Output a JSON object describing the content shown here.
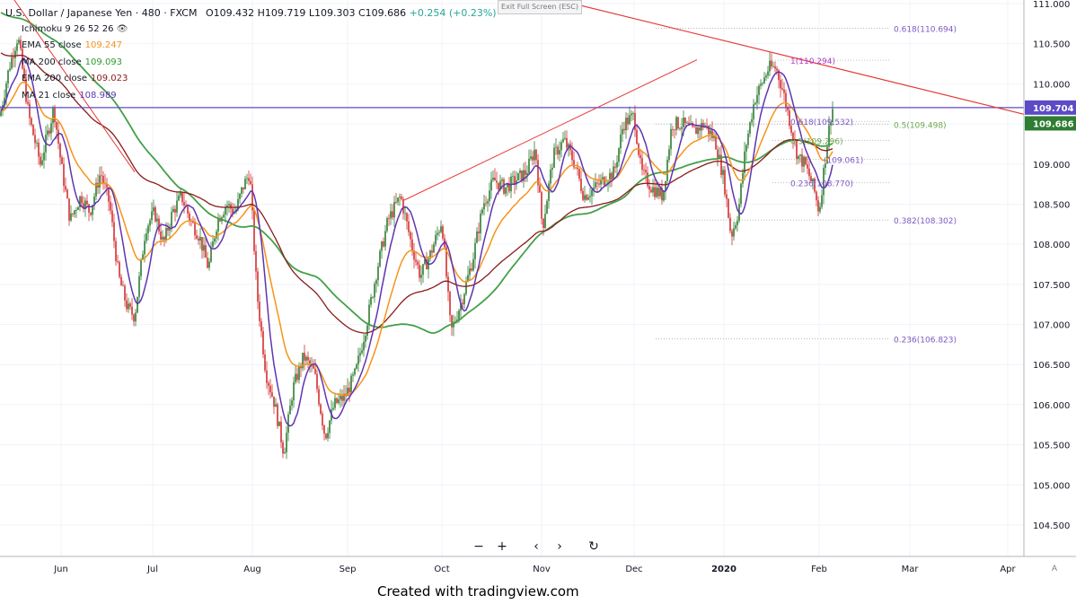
{
  "header": {
    "symbol": "U.S. Dollar / Japanese Yen · 480 · FXCM",
    "ohlc": "O109.432 H109.719 L109.303 C109.686",
    "change": "+0.254 (+0.23%)"
  },
  "legend": [
    {
      "label": "Ichimoku 9 26 52 26",
      "value": "",
      "color": "#131722"
    },
    {
      "label": "EMA 55 close",
      "value": "109.247",
      "color": "#f7931a"
    },
    {
      "label": "MA 200 close",
      "value": "109.093",
      "color": "#2e9b2e"
    },
    {
      "label": "EMA 200 close",
      "value": "109.023",
      "color": "#8b1a1a"
    },
    {
      "label": "MA 21 close",
      "value": "108.989",
      "color": "#5e35b1"
    }
  ],
  "exit_button": "Exit Full Screen (ESC)",
  "credit": "Created with tradingview.com",
  "nav": {
    "zoom_out": "−",
    "zoom_in": "+",
    "back": "‹",
    "forward": "›",
    "reset": "↻"
  },
  "axis_corner": "A",
  "colors": {
    "up": "#26a69a",
    "down": "#ef5350",
    "candle_up": "#2e7d32",
    "candle_down": "#d32f2f",
    "hline": "#5c4bc7",
    "trend": "#e53935",
    "ema55": "#f7931a",
    "ma200": "#43a047",
    "ema200": "#8b1a1a",
    "ma21": "#5e35b1",
    "fib_blue": "#7e57c2",
    "fib_green": "#6aa84f"
  },
  "chart_data": {
    "type": "candlestick",
    "y_axis": {
      "min": 104.5,
      "max": 111.0,
      "ticks": [
        "111.000",
        "110.500",
        "110.000",
        "109.500",
        "109.000",
        "108.500",
        "108.000",
        "107.500",
        "107.000",
        "106.500",
        "106.000",
        "105.500",
        "105.000",
        "104.500"
      ]
    },
    "x_axis": {
      "labels": [
        "Jun",
        "Jul",
        "Aug",
        "Sep",
        "Oct",
        "Nov",
        "Dec",
        "2020",
        "Feb",
        "Mar",
        "Apr"
      ]
    },
    "price_labels": [
      {
        "value": "109.704",
        "color": "#5c4bc7"
      },
      {
        "value": "109.686",
        "color": "#2e7d32"
      }
    ],
    "fib_right": [
      {
        "label": "0.618(110.694)",
        "value": 110.694
      },
      {
        "label": "0.5(109.498)",
        "value": 109.498
      },
      {
        "label": "0.382(108.302)",
        "value": 108.302
      },
      {
        "label": "0.236(106.823)",
        "value": 106.823
      }
    ],
    "fib_inner": [
      {
        "label": "1(110.294)",
        "value": 110.294
      },
      {
        "label": "0.618(109.532)",
        "value": 109.532
      },
      {
        "label": "0.5(109.296)",
        "value": 109.296
      },
      {
        "label": "(109.061)",
        "value": 109.061
      },
      {
        "label": "0.236(108.770)",
        "value": 108.77
      }
    ],
    "horizontal_level": 109.704,
    "series": [
      {
        "name": "MA 21 close",
        "last": 108.989
      },
      {
        "name": "EMA 55 close",
        "last": 109.247
      },
      {
        "name": "MA 200 close",
        "last": 109.093
      },
      {
        "name": "EMA 200 close",
        "last": 109.023
      }
    ]
  }
}
